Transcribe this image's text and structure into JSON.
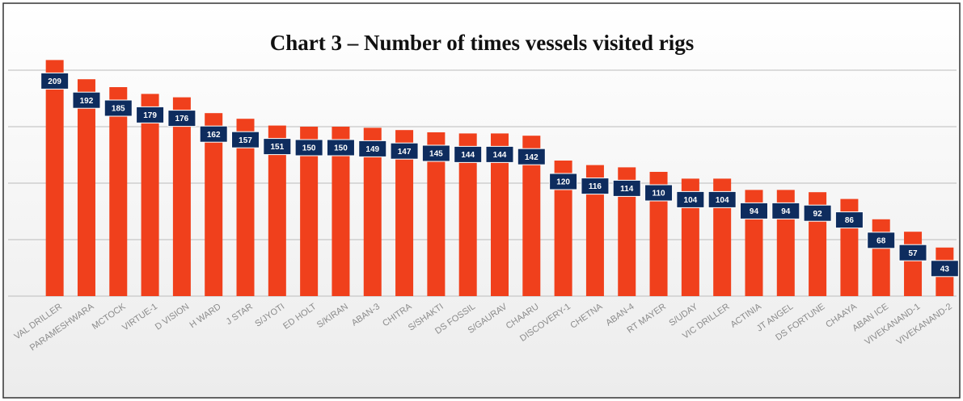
{
  "chart_data": {
    "type": "bar",
    "title": "Chart 3 – Number of times vessels visited rigs",
    "categories": [
      "VAL DRILLER",
      "PARAMESHWARA",
      "MCTOCK",
      "VIRTUE-1",
      "D VISION",
      "H WARD",
      "J STAR",
      "S/JYOTI",
      "ED HOLT",
      "S/KIRAN",
      "ABAN-3",
      "CHITRA",
      "S/SHAKTI",
      "DS FOSSIL",
      "S/GAURAV",
      "CHAARU",
      "DISCOVERY-1",
      "CHETNA",
      "ABAN-4",
      "RT MAYER",
      "S/UDAY",
      "VIC DRILLER",
      "ACTINIA",
      "JT ANGEL",
      "DS FORTUNE",
      "CHAAYA",
      "ABAN ICE",
      "VIVEKANAND-1",
      "VIVEKANAND-2"
    ],
    "values": [
      209,
      192,
      185,
      179,
      176,
      162,
      157,
      151,
      150,
      150,
      149,
      147,
      145,
      144,
      144,
      142,
      120,
      116,
      114,
      110,
      104,
      104,
      94,
      94,
      92,
      86,
      68,
      57,
      43
    ],
    "color": "#f0401c",
    "label_color": "#0e2c5e",
    "ylim": [
      0,
      250
    ],
    "yticks": [
      0,
      50,
      100,
      150,
      200
    ],
    "grid": true
  }
}
